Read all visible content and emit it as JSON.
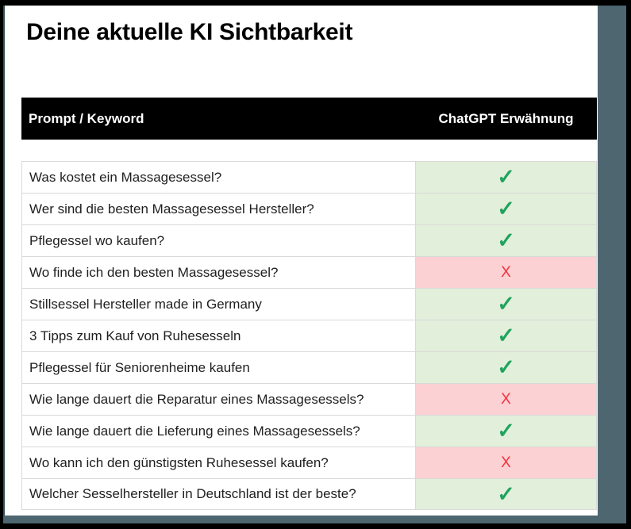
{
  "title": "Deine aktuelle KI Sichtbarkeit",
  "table": {
    "header": {
      "prompt": "Prompt / Keyword",
      "mention": "ChatGPT Erwähnung"
    },
    "rows": [
      {
        "prompt": "Was kostet ein Massagesessel?",
        "mentioned": true
      },
      {
        "prompt": "Wer sind die besten Massagesessel Hersteller?",
        "mentioned": true
      },
      {
        "prompt": "Pflegessel wo kaufen?",
        "mentioned": true
      },
      {
        "prompt": "Wo finde ich den besten Massagesessel?",
        "mentioned": false
      },
      {
        "prompt": "Stillsessel Hersteller made in Germany",
        "mentioned": true
      },
      {
        "prompt": "3 Tipps zum Kauf von Ruhesesseln",
        "mentioned": true
      },
      {
        "prompt": "Pflegessel für Seniorenheime kaufen",
        "mentioned": true
      },
      {
        "prompt": "Wie lange dauert die Reparatur eines Massagesessels?",
        "mentioned": false
      },
      {
        "prompt": "Wie lange dauert die Lieferung eines Massagesessels?",
        "mentioned": true
      },
      {
        "prompt": "Wo kann ich den günstigsten Ruhesessel kaufen?",
        "mentioned": false
      },
      {
        "prompt": "Welcher Sesselhersteller in Deutschland ist der beste?",
        "mentioned": true
      }
    ]
  },
  "glyphs": {
    "check": "✓",
    "cross": "X"
  },
  "colors": {
    "header_bg": "#000000",
    "header_text": "#ffffff",
    "row_border": "#d9d9d9",
    "green_bg": "#e2efda",
    "red_bg": "#fbd1d3",
    "check": "#21a35f",
    "cross": "#f5333f",
    "backdrop": "#4d6670",
    "page_bg": "#ffffff",
    "text": "#1f1f1f"
  }
}
